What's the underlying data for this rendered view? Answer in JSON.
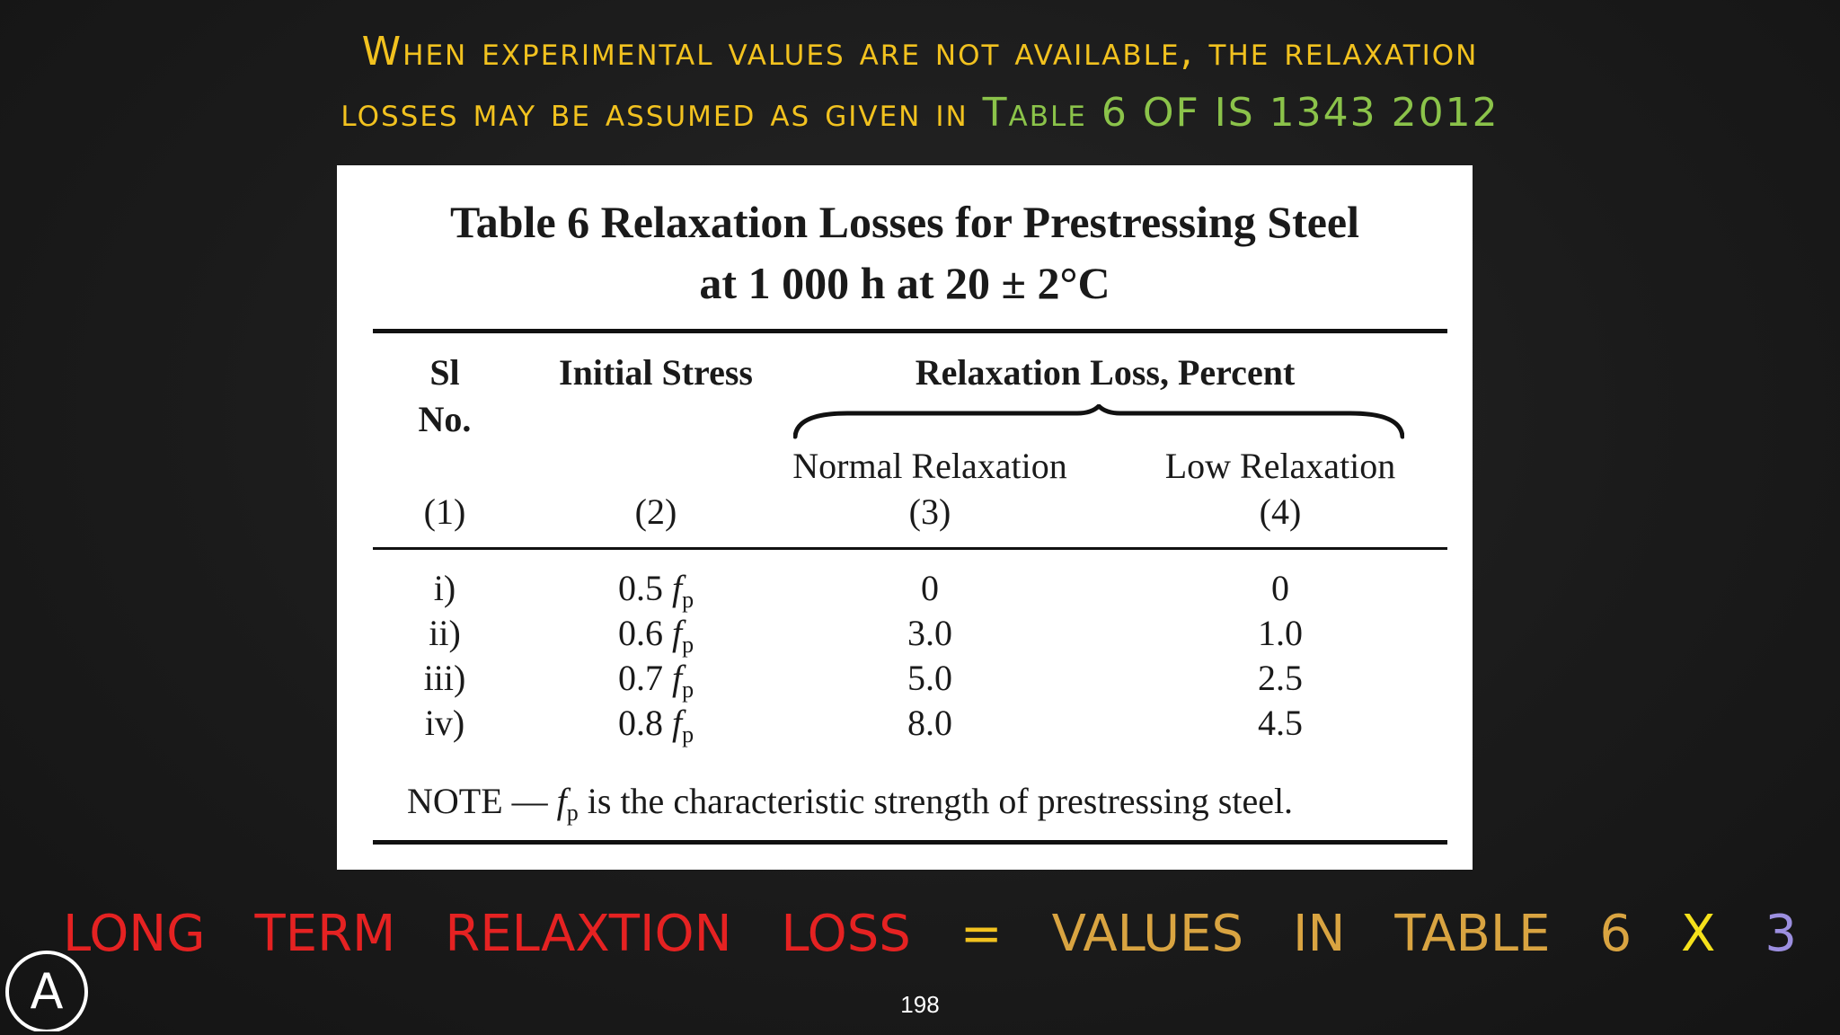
{
  "heading": {
    "line1": "When experimental values are not available, the relaxation",
    "line2_prefix": "losses may be assumed as given in ",
    "line2_highlight": "Table 6 OF IS 1343 2012"
  },
  "table": {
    "title_line1": "Table 6 Relaxation Losses for Prestressing Steel",
    "title_line2": "at 1 000 h at 20 ± 2°C",
    "col1_header_line1": "Sl",
    "col1_header_line2": "No.",
    "col2_header": "Initial Stress",
    "group_header": "Relaxation Loss, Percent",
    "col3_header": "Normal Relaxation",
    "col4_header": "Low Relaxation",
    "col_numbers": [
      "(1)",
      "(2)",
      "(3)",
      "(4)"
    ],
    "rows": [
      {
        "sl": "i)",
        "stress": "0.5",
        "normal": "0",
        "low": "0"
      },
      {
        "sl": "ii)",
        "stress": "0.6",
        "normal": "3.0",
        "low": "1.0"
      },
      {
        "sl": "iii)",
        "stress": "0.7",
        "normal": "5.0",
        "low": "2.5"
      },
      {
        "sl": "iv)",
        "stress": "0.8",
        "normal": "8.0",
        "low": "4.5"
      }
    ],
    "fp_symbol": "f",
    "fp_subscript": "p",
    "note_prefix": "NOTE — ",
    "note_suffix": " is the characteristic strength of prestressing steel."
  },
  "formula": {
    "words": [
      {
        "text": "LONG",
        "color": "#e52222"
      },
      {
        "text": "TERM",
        "color": "#e52222"
      },
      {
        "text": "RELAXTION",
        "color": "#e52222"
      },
      {
        "text": "LOSS",
        "color": "#e52222"
      },
      {
        "text": "=",
        "color": "#f2c21f"
      },
      {
        "text": "VALUES",
        "color": "#d9a441"
      },
      {
        "text": "IN",
        "color": "#d9a441"
      },
      {
        "text": "TABLE",
        "color": "#d9a441"
      },
      {
        "text": "6",
        "color": "#d9a441"
      },
      {
        "text": "X",
        "color": "#f5e11b"
      },
      {
        "text": "3",
        "color": "#9c8fe0"
      }
    ]
  },
  "page_number": "198",
  "logo_letter": "A"
}
